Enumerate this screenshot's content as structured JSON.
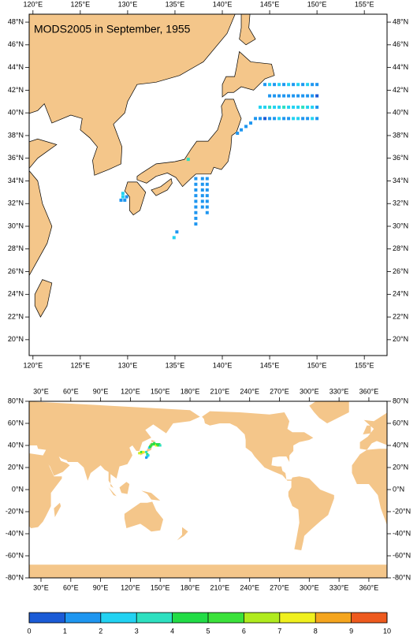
{
  "chart_data": [
    {
      "type": "map",
      "title": "MODS2005 in September, 1955",
      "xlim": [
        119.6,
        157.4
      ],
      "ylim": [
        18.6,
        48.7
      ],
      "xticks": [
        {
          "value": 120,
          "label": "120°E"
        },
        {
          "value": 125,
          "label": "125°E"
        },
        {
          "value": 130,
          "label": "130°E"
        },
        {
          "value": 135,
          "label": "135°E"
        },
        {
          "value": 140,
          "label": "140°E"
        },
        {
          "value": 145,
          "label": "145°E"
        },
        {
          "value": 150,
          "label": "150°E"
        },
        {
          "value": 155,
          "label": "155°E"
        }
      ],
      "yticks": [
        {
          "value": 20,
          "label": "20°N"
        },
        {
          "value": 22,
          "label": "22°N"
        },
        {
          "value": 24,
          "label": "24°N"
        },
        {
          "value": 26,
          "label": "26°N"
        },
        {
          "value": 28,
          "label": "28°N"
        },
        {
          "value": 30,
          "label": "30°N"
        },
        {
          "value": 32,
          "label": "32°N"
        },
        {
          "value": 34,
          "label": "34°N"
        },
        {
          "value": 36,
          "label": "36°N"
        },
        {
          "value": 38,
          "label": "38°N"
        },
        {
          "value": 40,
          "label": "40°N"
        },
        {
          "value": 42,
          "label": "42°N"
        },
        {
          "value": 44,
          "label": "44°N"
        },
        {
          "value": 46,
          "label": "46°N"
        },
        {
          "value": 48,
          "label": "48°N"
        }
      ],
      "land_color": "#f4c68a",
      "points": {
        "lon": [
          144.5,
          145,
          145.5,
          146,
          146.5,
          147,
          147.5,
          148,
          148.5,
          149,
          149.5,
          150,
          145,
          145.5,
          146,
          146.5,
          147,
          147.5,
          148,
          148.5,
          149,
          149.5,
          150,
          144,
          144.5,
          145,
          145.5,
          146,
          146.5,
          147,
          147.5,
          148,
          148.5,
          149,
          149.5,
          150,
          143.5,
          144,
          144.5,
          145,
          145.5,
          146,
          146.5,
          147,
          147.5,
          148,
          148.5,
          149,
          149.5,
          150,
          143,
          142.5,
          142,
          141.6,
          137.2,
          137.2,
          137.2,
          137.2,
          137.2,
          137.2,
          137.2,
          137.2,
          137.2,
          137.9,
          137.9,
          137.9,
          137.9,
          137.9,
          137.9,
          138.4,
          138.4,
          138.4,
          138.4,
          138.4,
          138.4,
          138.4,
          135.2,
          134.9,
          136.4,
          129.5,
          129.3,
          129.7,
          129.5,
          129.9
        ],
        "lat": [
          42.5,
          42.5,
          42.5,
          42.5,
          42.5,
          42.5,
          42.5,
          42.5,
          42.5,
          42.5,
          42.5,
          42.5,
          41.5,
          41.5,
          41.5,
          41.5,
          41.5,
          41.5,
          41.5,
          41.5,
          41.5,
          41.5,
          41.5,
          40.5,
          40.5,
          40.5,
          40.5,
          40.5,
          40.5,
          40.5,
          40.5,
          40.5,
          40.5,
          40.5,
          40.5,
          40.5,
          39.5,
          39.5,
          39.5,
          39.5,
          39.5,
          39.5,
          39.5,
          39.5,
          39.5,
          39.5,
          39.5,
          39.5,
          39.5,
          39.5,
          39.1,
          38.8,
          38.5,
          38.2,
          34.2,
          33.7,
          33.2,
          32.7,
          32.2,
          31.7,
          31.2,
          30.7,
          30.2,
          34.2,
          33.7,
          33.2,
          32.7,
          32.2,
          31.7,
          34.2,
          33.7,
          33.2,
          32.7,
          32.2,
          31.7,
          31.2,
          29.5,
          29.0,
          35.9,
          32.6,
          32.3,
          32.3,
          32.9,
          32.6
        ],
        "value": [
          1.5,
          2.5,
          1.5,
          2.5,
          1.5,
          2.5,
          1.5,
          2.5,
          1.5,
          2.5,
          1.5,
          1.5,
          1.5,
          1.5,
          1.5,
          1.5,
          1.5,
          1.5,
          1.5,
          1.5,
          1.5,
          1.5,
          0.5,
          2.5,
          2.5,
          3.5,
          2.5,
          2.5,
          3.5,
          2.5,
          2.5,
          2.5,
          3.5,
          2.5,
          2.5,
          1.5,
          1.5,
          1.5,
          0.5,
          1.5,
          1.5,
          2.5,
          1.5,
          1.5,
          2.5,
          2.5,
          1.5,
          1.5,
          2.5,
          1.5,
          1.5,
          1.5,
          1.5,
          1.5,
          1.5,
          1.5,
          1.5,
          1.5,
          1.5,
          1.5,
          1.5,
          1.5,
          1.5,
          1.5,
          1.5,
          1.5,
          1.5,
          1.5,
          1.5,
          1.5,
          1.5,
          1.5,
          1.5,
          1.5,
          1.5,
          1.5,
          1.5,
          2.5,
          3.5,
          2.5,
          1.5,
          1.5,
          2.5,
          1.5
        ]
      }
    },
    {
      "type": "map",
      "xlim": [
        18.1,
        378.3
      ],
      "ylim": [
        -80,
        80
      ],
      "xticks": [
        {
          "value": 30,
          "label": "30°E"
        },
        {
          "value": 60,
          "label": "60°E"
        },
        {
          "value": 90,
          "label": "90°E"
        },
        {
          "value": 120,
          "label": "120°E"
        },
        {
          "value": 150,
          "label": "150°E"
        },
        {
          "value": 180,
          "label": "180°E"
        },
        {
          "value": 210,
          "label": "210°E"
        },
        {
          "value": 240,
          "label": "240°E"
        },
        {
          "value": 270,
          "label": "270°E"
        },
        {
          "value": 300,
          "label": "300°E"
        },
        {
          "value": 330,
          "label": "330°E"
        },
        {
          "value": 360,
          "label": "360°E"
        }
      ],
      "yticks": [
        {
          "value": -80,
          "label": "-80°N"
        },
        {
          "value": -60,
          "label": "-60°N"
        },
        {
          "value": -40,
          "label": "-40°N"
        },
        {
          "value": -20,
          "label": "-20°N"
        },
        {
          "value": 0,
          "label": "0°N"
        },
        {
          "value": 20,
          "label": "20°N"
        },
        {
          "value": 40,
          "label": "40°N"
        },
        {
          "value": 60,
          "label": "60°N"
        },
        {
          "value": 80,
          "label": "80°N"
        }
      ],
      "land_color": "#f4c68a",
      "points": {
        "lon": [
          129,
          130,
          131,
          133,
          136,
          137,
          139,
          140,
          141,
          142,
          143,
          144,
          145,
          146,
          147,
          148,
          149,
          150,
          138,
          137,
          136
        ],
        "lat": [
          33,
          33,
          34,
          34,
          34,
          32,
          38,
          39,
          40,
          41,
          41,
          42,
          41,
          40,
          41,
          40,
          41,
          40,
          31,
          30,
          29
        ],
        "value": [
          6.5,
          7.5,
          5.5,
          7.5,
          3.5,
          5.5,
          2.5,
          4.5,
          5.5,
          4.5,
          5.5,
          4.5,
          5.5,
          7.5,
          4.5,
          5.5,
          4.5,
          3.5,
          2.5,
          2.5,
          1.5
        ]
      }
    },
    {
      "type": "colorbar",
      "levels": [
        0,
        1,
        2,
        3,
        4,
        5,
        6,
        7,
        8,
        9,
        10
      ],
      "colors": [
        "#1b5bd6",
        "#1e96f0",
        "#22d2f2",
        "#2de0c0",
        "#22dc46",
        "#3be23b",
        "#b0eb1e",
        "#f0f01e",
        "#f5a51e",
        "#ee5a1e"
      ]
    }
  ]
}
